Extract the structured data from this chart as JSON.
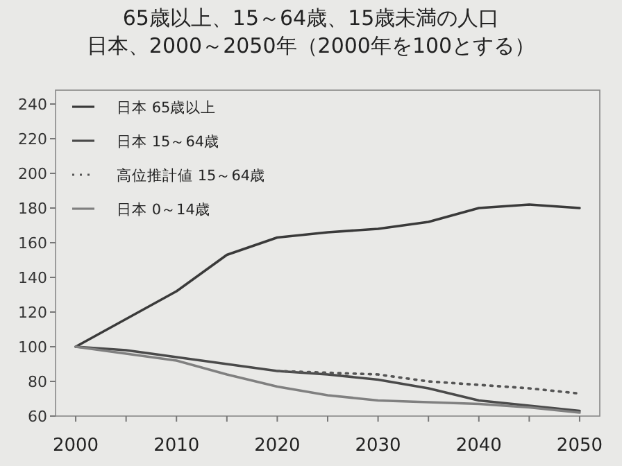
{
  "chart_data": {
    "type": "line",
    "title": "65歳以上、15～64歳、15歳未満の人口",
    "subtitle": "日本、2000～2050年（2000年を100とする）",
    "x": [
      2000,
      2005,
      2010,
      2015,
      2020,
      2025,
      2030,
      2035,
      2040,
      2045,
      2050
    ],
    "series": [
      {
        "name": "日本  65歳以上",
        "color": "#3a3a3a",
        "line_style": "solid",
        "values": [
          100,
          116,
          132,
          153,
          163,
          166,
          168,
          172,
          180,
          182,
          180
        ]
      },
      {
        "name": "日本  15～64歳",
        "color": "#4a4a4a",
        "line_style": "solid",
        "values": [
          100,
          98,
          94,
          90,
          86,
          84,
          81,
          76,
          69,
          66,
          63
        ]
      },
      {
        "name": "高位推計値  15～64歳",
        "color": "#555555",
        "line_style": "dotted",
        "x": [
          2020,
          2025,
          2030,
          2035,
          2040,
          2045,
          2050
        ],
        "values": [
          86,
          85,
          84,
          80,
          78,
          76,
          73
        ]
      },
      {
        "name": "日本  0～14歳",
        "color": "#808080",
        "line_style": "solid",
        "values": [
          100,
          96,
          92,
          84,
          77,
          72,
          69,
          68,
          67,
          65,
          62
        ]
      }
    ],
    "xlim": [
      1998,
      2052
    ],
    "ylim": [
      60,
      248
    ],
    "xticks": [
      2000,
      {
        "value": 2005,
        "label": null
      },
      2010,
      {
        "value": 2015,
        "label": null
      },
      2020,
      {
        "value": 2025,
        "label": null
      },
      2030,
      {
        "value": 2035,
        "label": null
      },
      2040,
      {
        "value": 2045,
        "label": null
      },
      2050
    ],
    "yticks": [
      60,
      80,
      100,
      120,
      140,
      160,
      180,
      200,
      220,
      240
    ],
    "grid": false,
    "legend": "top left",
    "marker": "none"
  }
}
